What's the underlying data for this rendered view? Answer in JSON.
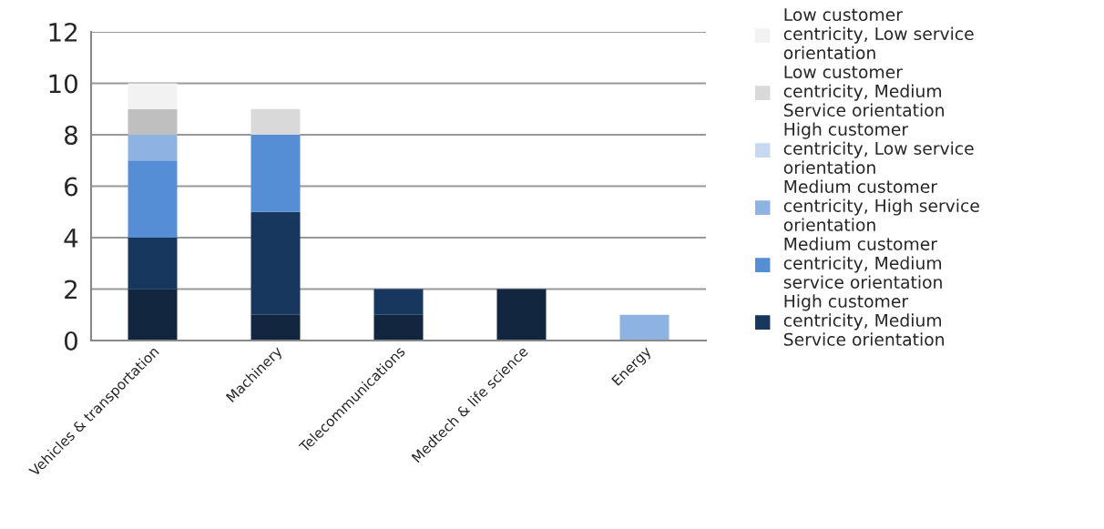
{
  "chart_data": {
    "type": "bar",
    "stacked": true,
    "categories": [
      "Vehicles & transportation",
      "Machinery",
      "Telecommunications",
      "Medtech & life science",
      "Energy"
    ],
    "series": [
      {
        "color": "#12263f",
        "values": [
          2,
          1,
          1,
          2,
          0
        ]
      },
      {
        "name": "High customer\ncentricity, Medium\nService orientation",
        "color": "#17375e",
        "values": [
          2,
          4,
          1,
          0,
          0
        ]
      },
      {
        "name": "Medium customer\ncentricity, Medium\nservice orientation",
        "color": "#558ed5",
        "values": [
          3,
          3,
          0,
          0,
          0
        ]
      },
      {
        "name": "Medium customer\ncentricity, High service\norientation",
        "color": "#8db3e2",
        "values": [
          1,
          0,
          0,
          0,
          1
        ]
      },
      {
        "name": "High customer\ncentricity, Low service\norientation",
        "color": "#c6d9f1",
        "values": [
          0,
          0,
          0,
          0,
          0
        ]
      },
      {
        "color": "#bfbfbf",
        "values": [
          1,
          0,
          0,
          0,
          0
        ]
      },
      {
        "name": "Low customer\ncentricity, Medium\nService orientation",
        "color": "#d9d9d9",
        "values": [
          0,
          1,
          0,
          0,
          0
        ]
      },
      {
        "name": "Low customer\ncentricity, Low service\norientation",
        "color": "#f2f2f2",
        "values": [
          1,
          0,
          0,
          0,
          0
        ]
      }
    ],
    "ylim": [
      0,
      12
    ],
    "yticks": [
      0,
      2,
      4,
      6,
      8,
      10,
      12
    ],
    "grid": "y",
    "legend": "right"
  }
}
